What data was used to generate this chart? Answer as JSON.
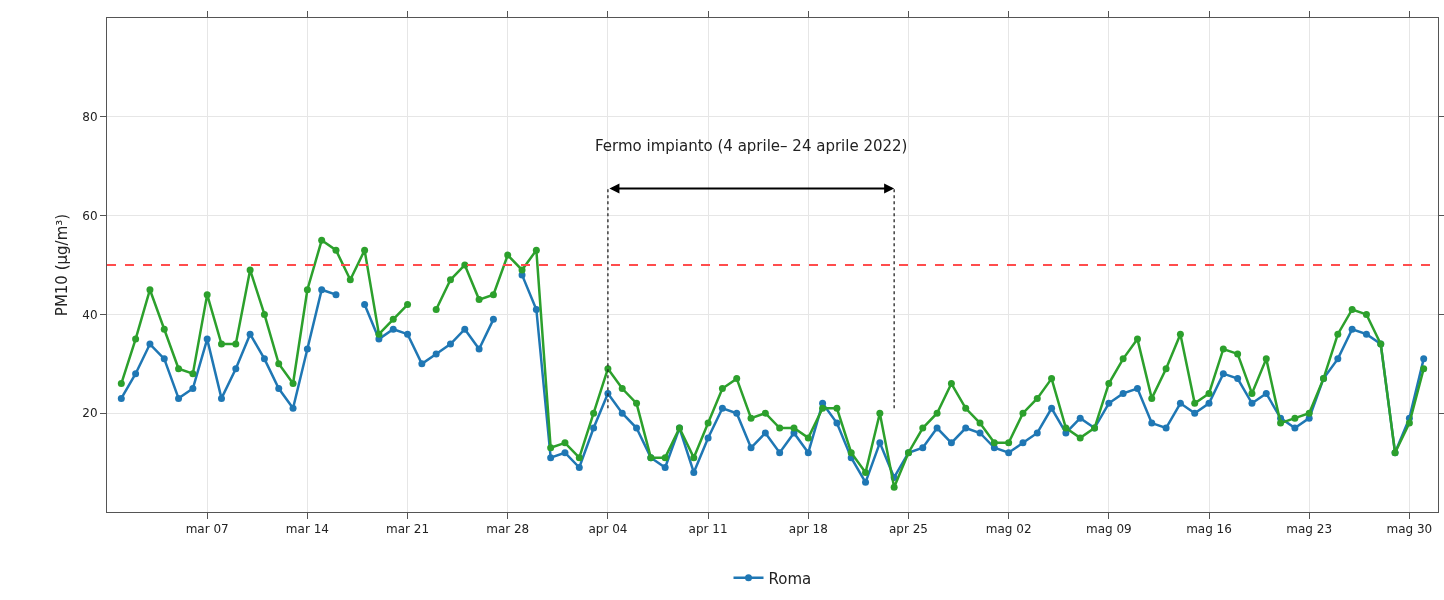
{
  "chart_data": {
    "type": "line",
    "ylabel": "PM10 (µg/m³)",
    "x": [
      "2022-03-01",
      "2022-03-02",
      "2022-03-03",
      "2022-03-04",
      "2022-03-05",
      "2022-03-06",
      "2022-03-07",
      "2022-03-08",
      "2022-03-09",
      "2022-03-10",
      "2022-03-11",
      "2022-03-12",
      "2022-03-13",
      "2022-03-14",
      "2022-03-15",
      "2022-03-16",
      "2022-03-17",
      "2022-03-18",
      "2022-03-19",
      "2022-03-20",
      "2022-03-21",
      "2022-03-22",
      "2022-03-23",
      "2022-03-24",
      "2022-03-25",
      "2022-03-26",
      "2022-03-27",
      "2022-03-28",
      "2022-03-29",
      "2022-03-30",
      "2022-03-31",
      "2022-04-01",
      "2022-04-02",
      "2022-04-03",
      "2022-04-04",
      "2022-04-05",
      "2022-04-06",
      "2022-04-07",
      "2022-04-08",
      "2022-04-09",
      "2022-04-10",
      "2022-04-11",
      "2022-04-12",
      "2022-04-13",
      "2022-04-14",
      "2022-04-15",
      "2022-04-16",
      "2022-04-17",
      "2022-04-18",
      "2022-04-19",
      "2022-04-20",
      "2022-04-21",
      "2022-04-22",
      "2022-04-23",
      "2022-04-24",
      "2022-04-25",
      "2022-04-26",
      "2022-04-27",
      "2022-04-28",
      "2022-04-29",
      "2022-04-30",
      "2022-05-01",
      "2022-05-02",
      "2022-05-03",
      "2022-05-04",
      "2022-05-05",
      "2022-05-06",
      "2022-05-07",
      "2022-05-08",
      "2022-05-09",
      "2022-05-10",
      "2022-05-11",
      "2022-05-12",
      "2022-05-13",
      "2022-05-14",
      "2022-05-15",
      "2022-05-16",
      "2022-05-17",
      "2022-05-18",
      "2022-05-19",
      "2022-05-20",
      "2022-05-21",
      "2022-05-22",
      "2022-05-23",
      "2022-05-24",
      "2022-05-25",
      "2022-05-26",
      "2022-05-27",
      "2022-05-28",
      "2022-05-29",
      "2022-05-30",
      "2022-05-31"
    ],
    "series": [
      {
        "name": "Roma",
        "color": "#1f77b4",
        "values": [
          23,
          28,
          34,
          31,
          23,
          25,
          35,
          23,
          29,
          36,
          31,
          25,
          21,
          33,
          45,
          44,
          null,
          42,
          35,
          37,
          36,
          30,
          32,
          34,
          37,
          33,
          39,
          null,
          48,
          41,
          11,
          12,
          9,
          17,
          24,
          20,
          17,
          11,
          9,
          17,
          8,
          15,
          21,
          20,
          13,
          16,
          12,
          16,
          12,
          22,
          18,
          11,
          6,
          14,
          7,
          12,
          13,
          17,
          14,
          17,
          16,
          13,
          12,
          14,
          16,
          21,
          16,
          19,
          17,
          22,
          24,
          25,
          18,
          17,
          22,
          20,
          22,
          28,
          27,
          22,
          24,
          19,
          17,
          19,
          27,
          31,
          37,
          36,
          34,
          12,
          19,
          31
        ]
      },
      {
        "color": "#2ca02c",
        "values": [
          26,
          35,
          45,
          37,
          29,
          28,
          44,
          34,
          34,
          49,
          40,
          30,
          26,
          45,
          55,
          53,
          47,
          53,
          36,
          39,
          42,
          null,
          41,
          47,
          50,
          43,
          44,
          52,
          49,
          53,
          13,
          14,
          11,
          20,
          29,
          25,
          22,
          11,
          11,
          17,
          11,
          18,
          25,
          27,
          19,
          20,
          17,
          17,
          15,
          21,
          21,
          12,
          8,
          20,
          5,
          12,
          17,
          20,
          26,
          21,
          18,
          14,
          14,
          20,
          23,
          27,
          17,
          15,
          17,
          26,
          31,
          35,
          23,
          29,
          36,
          22,
          24,
          33,
          32,
          24,
          31,
          18,
          19,
          20,
          27,
          36,
          41,
          40,
          34,
          12,
          18,
          29
        ]
      }
    ],
    "xlim": [
      "2022-02-28",
      "2022-06-01"
    ],
    "xticks": [
      {
        "value": "2022-03-07",
        "label": "mar 07"
      },
      {
        "value": "2022-03-14",
        "label": "mar 14"
      },
      {
        "value": "2022-03-21",
        "label": "mar 21"
      },
      {
        "value": "2022-03-28",
        "label": "mar 28"
      },
      {
        "value": "2022-04-04",
        "label": "apr 04"
      },
      {
        "value": "2022-04-11",
        "label": "apr 11"
      },
      {
        "value": "2022-04-18",
        "label": "apr 18"
      },
      {
        "value": "2022-04-25",
        "label": "apr 25"
      },
      {
        "value": "2022-05-02",
        "label": "mag 02"
      },
      {
        "value": "2022-05-09",
        "label": "mag 09"
      },
      {
        "value": "2022-05-16",
        "label": "mag 16"
      },
      {
        "value": "2022-05-23",
        "label": "mag 23"
      },
      {
        "value": "2022-05-30",
        "label": "mag 30"
      }
    ],
    "ylim": [
      0,
      100
    ],
    "yticks": [
      20,
      40,
      60,
      80
    ],
    "ref_lines": [
      {
        "axis": "y",
        "value": 50,
        "color": "#ff4d4d",
        "line_style": "dashed"
      },
      {
        "axis": "x",
        "value": "2022-04-04",
        "color": "#222222",
        "line_style": "dotted"
      },
      {
        "axis": "x",
        "value": "2022-04-24",
        "color": "#222222",
        "line_style": "dotted"
      }
    ],
    "annotations": [
      "Fermo impianto (4 aprile– 24 aprile 2022)"
    ],
    "grid": true,
    "legend": "bottom",
    "marker": "circle",
    "line_style": "solid"
  }
}
